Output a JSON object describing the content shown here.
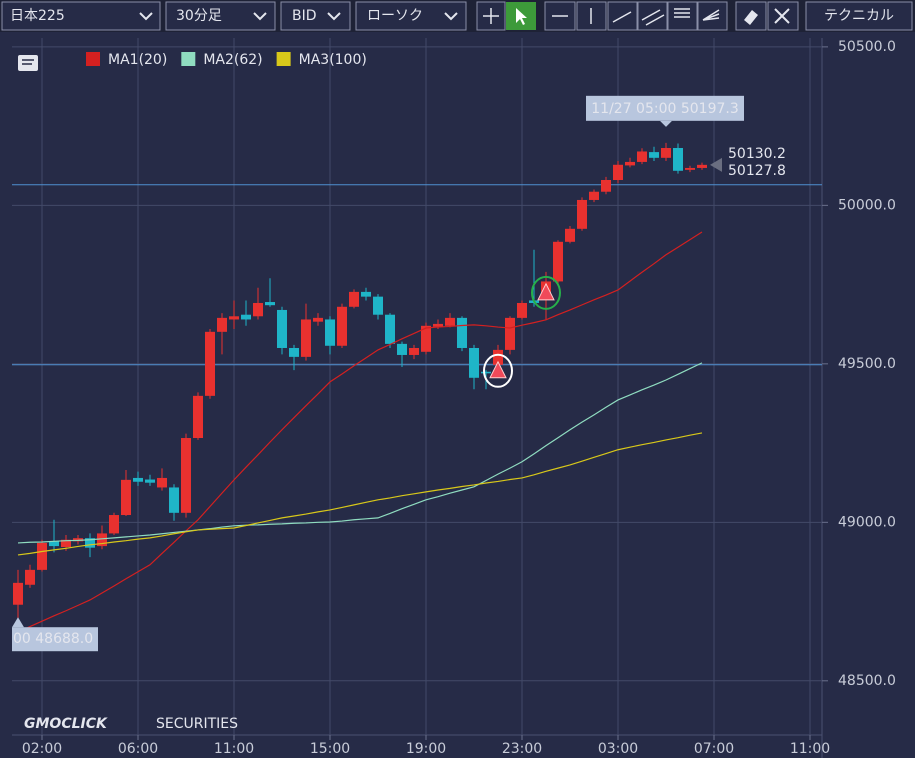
{
  "toolbar": {
    "symbol": "日本225",
    "timeframe": "30分足",
    "price_type": "BID",
    "chart_style": "ローソク",
    "technical": "テクニカル"
  },
  "chart_data": {
    "type": "candlestick",
    "up_color": "#e8312f",
    "down_color": "#1fb5c8",
    "open": [
      48740,
      48803,
      48850,
      48940,
      48922,
      48940,
      48950,
      48925,
      48965,
      49023,
      49140,
      49135,
      49110,
      49110,
      49030,
      49266,
      49399,
      49601,
      49640,
      49655,
      49650,
      49695,
      49670,
      49550,
      49522,
      49633,
      49640,
      49557,
      49680,
      49727,
      49712,
      49655,
      49563,
      49528,
      49538,
      49617,
      49620,
      49645,
      49550,
      49475,
      49497,
      49544,
      49645,
      49700,
      49702,
      49760,
      49885,
      49926,
      50017,
      50043,
      50080,
      50126,
      50137,
      50168,
      50150,
      50181,
      50112,
      50118
    ],
    "high": [
      48850,
      48866,
      48945,
      49008,
      48960,
      48960,
      48965,
      48990,
      49030,
      49165,
      49160,
      49150,
      49170,
      49120,
      49280,
      49410,
      49610,
      49660,
      49700,
      49700,
      49740,
      49770,
      49680,
      49560,
      49690,
      49660,
      49650,
      49690,
      49735,
      49740,
      49720,
      49660,
      49570,
      49560,
      49630,
      49640,
      49660,
      49650,
      49560,
      49480,
      49560,
      49650,
      49700,
      49860,
      49790,
      49890,
      49935,
      50025,
      50050,
      50090,
      50140,
      50150,
      50180,
      50185,
      50197.3,
      50195,
      50125,
      50135
    ],
    "low": [
      48688,
      48793,
      48845,
      48905,
      48910,
      48930,
      48890,
      48915,
      48960,
      49020,
      49115,
      49115,
      49100,
      49005,
      49015,
      49260,
      49390,
      49530,
      49610,
      49620,
      49640,
      49680,
      49530,
      49480,
      49510,
      49620,
      49530,
      49550,
      49675,
      49700,
      49640,
      49550,
      49490,
      49515,
      49530,
      49610,
      49615,
      49540,
      49420,
      49420,
      49480,
      49530,
      49640,
      49680,
      49640,
      49750,
      49880,
      49920,
      50010,
      50035,
      50070,
      50120,
      50130,
      50140,
      50140,
      50100,
      50105,
      50112
    ],
    "close": [
      48809,
      48850,
      48935,
      48925,
      48945,
      48950,
      48920,
      48965,
      49023,
      49134,
      49128,
      49125,
      49140,
      49030,
      49266,
      49399,
      49601,
      49645,
      49650,
      49640,
      49692,
      49685,
      49550,
      49522,
      49640,
      49645,
      49557,
      49680,
      49727,
      49712,
      49655,
      49563,
      49528,
      49550,
      49620,
      49626,
      49645,
      49550,
      49456,
      49470,
      49544,
      49645,
      49692,
      49692,
      49760,
      49885,
      49926,
      50017,
      50043,
      50080,
      50128,
      50137,
      50170,
      50150,
      50181,
      50109,
      50118,
      50127.8
    ],
    "series": [
      {
        "name": "MA1(20)",
        "color": "#d42020",
        "values": [
          48654,
          48671,
          48688,
          48705,
          48721,
          48738,
          48755,
          48777,
          48799,
          48822,
          48844,
          48866,
          48902,
          48937,
          48973,
          49008,
          49050,
          49092,
          49134,
          49174,
          49213,
          49253,
          49292,
          49330,
          49368,
          49405,
          49443,
          49468,
          49494,
          49519,
          49544,
          49561,
          49579,
          49596,
          49613,
          49616,
          49618,
          49621,
          49623,
          49620,
          49616,
          49613,
          49622,
          49630,
          49639,
          49655,
          49670,
          49686,
          49702,
          49717,
          49733,
          49761,
          49789,
          49816,
          49844,
          49868,
          49892,
          49916
        ]
      },
      {
        "name": "MA2(62)",
        "color": "#8fdcc0",
        "values": [
          48935,
          48937,
          48938,
          48940,
          48942,
          48943,
          48945,
          48948,
          48951,
          48954,
          48957,
          48960,
          48964,
          48968,
          48972,
          48976,
          48980,
          48985,
          48989,
          48991,
          48992,
          48994,
          48995,
          48997,
          48998,
          49000,
          49001,
          49004,
          49008,
          49011,
          49014,
          49028,
          49043,
          49057,
          49071,
          49081,
          49092,
          49102,
          49112,
          49132,
          49152,
          49171,
          49191,
          49216,
          49242,
          49267,
          49292,
          49316,
          49339,
          49363,
          49386,
          49402,
          49418,
          49433,
          49449,
          49467,
          49485,
          49503
        ]
      },
      {
        "name": "MA3(100)",
        "color": "#d8c81a",
        "values": [
          48897,
          48902,
          48908,
          48913,
          48918,
          48924,
          48929,
          48933,
          48938,
          48942,
          48947,
          48951,
          48957,
          48964,
          48970,
          48976,
          48978,
          48980,
          48982,
          48990,
          48998,
          49006,
          49014,
          49020,
          49026,
          49033,
          49039,
          49047,
          49055,
          49063,
          49071,
          49077,
          49084,
          49090,
          49096,
          49102,
          49107,
          49113,
          49118,
          49124,
          49129,
          49135,
          49140,
          49150,
          49161,
          49171,
          49181,
          49193,
          49205,
          49217,
          49229,
          49237,
          49245,
          49252,
          49260,
          49267,
          49275,
          49282
        ]
      }
    ],
    "xlim": [
      -0.5,
      67
    ],
    "xticks": [
      {
        "value": 2,
        "label": "02:00"
      },
      {
        "value": 10,
        "label": "06:00"
      },
      {
        "value": 18,
        "label": "11:00"
      },
      {
        "value": 26,
        "label": "15:00"
      },
      {
        "value": 34,
        "label": "19:00"
      },
      {
        "value": 42,
        "label": "23:00"
      },
      {
        "value": 50,
        "label": "03:00"
      },
      {
        "value": 58,
        "label": "07:00"
      },
      {
        "value": 66,
        "label": "11:00"
      }
    ],
    "ylim": [
      48329,
      50528
    ],
    "yticks": [
      {
        "value": 48500,
        "label": "48500.0"
      },
      {
        "value": 49000,
        "label": "49000.0"
      },
      {
        "value": 49500,
        "label": "49500.0"
      },
      {
        "value": 50000,
        "label": "50000.0"
      },
      {
        "value": 50500,
        "label": "50500.0"
      }
    ],
    "grid": true,
    "hlines": [
      50065,
      49497
    ],
    "hline_color": "#4f8fd0",
    "signals": [
      {
        "x": 40,
        "y": 49478,
        "color": "#ffffff"
      },
      {
        "x": 44,
        "y": 49724,
        "color": "#27b04a"
      }
    ],
    "high_label": "11/27 05:00 50197.3",
    "low_label": "00 48688.0",
    "ask": 50130.2,
    "bid": 50127.8,
    "logo": "GMOCLICK",
    "logo_sub": "SECURITIES"
  }
}
